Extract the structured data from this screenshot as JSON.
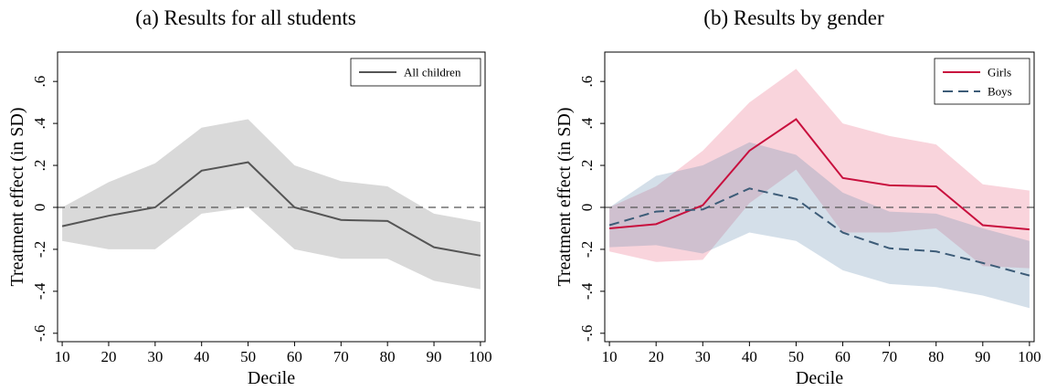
{
  "chart_data": [
    {
      "type": "line",
      "subcaption": "(a) Results for all students",
      "xlabel": "Decile",
      "ylabel": "Treatment effect (in SD)",
      "x": [
        10,
        20,
        30,
        40,
        50,
        60,
        70,
        80,
        90,
        100
      ],
      "xticks": [
        "10",
        "20",
        "30",
        "40",
        "50",
        "60",
        "70",
        "80",
        "90",
        "100"
      ],
      "yticks": [
        "-.6",
        "-.4",
        "-.2",
        "0",
        ".2",
        ".4",
        ".6"
      ],
      "ylim": [
        -0.64,
        0.74
      ],
      "xlim": [
        9,
        101
      ],
      "grid": false,
      "reference_line": 0,
      "legend_position": "top-right",
      "series": [
        {
          "name": "All children",
          "color": "#555555",
          "band_color": "#d9d9d9",
          "dash": "solid",
          "values": [
            -0.09,
            -0.04,
            0.0,
            0.175,
            0.215,
            0.0,
            -0.06,
            -0.065,
            -0.19,
            -0.23
          ],
          "ci_upper": [
            0.0,
            0.12,
            0.21,
            0.38,
            0.42,
            0.2,
            0.125,
            0.1,
            -0.03,
            -0.07
          ],
          "ci_lower": [
            -0.16,
            -0.2,
            -0.2,
            -0.03,
            0.0,
            -0.2,
            -0.245,
            -0.245,
            -0.35,
            -0.39
          ]
        }
      ]
    },
    {
      "type": "line",
      "subcaption": "(b) Results by gender",
      "xlabel": "Decile",
      "ylabel": "Treatment effect (in SD)",
      "x": [
        10,
        20,
        30,
        40,
        50,
        60,
        70,
        80,
        90,
        100
      ],
      "xticks": [
        "10",
        "20",
        "30",
        "40",
        "50",
        "60",
        "70",
        "80",
        "90",
        "100"
      ],
      "yticks": [
        "-.6",
        "-.4",
        "-.2",
        "0",
        ".2",
        ".4",
        ".6"
      ],
      "ylim": [
        -0.64,
        0.74
      ],
      "xlim": [
        9,
        101
      ],
      "grid": false,
      "reference_line": 0,
      "legend_position": "top-right",
      "series": [
        {
          "name": "Girls",
          "color": "#c8103e",
          "band_color": "rgba(230,90,120,0.26)",
          "dash": "solid",
          "values": [
            -0.1,
            -0.08,
            0.01,
            0.27,
            0.42,
            0.14,
            0.105,
            0.1,
            -0.085,
            -0.105
          ],
          "ci_upper": [
            0.0,
            0.1,
            0.27,
            0.5,
            0.66,
            0.4,
            0.34,
            0.3,
            0.11,
            0.08
          ],
          "ci_lower": [
            -0.21,
            -0.26,
            -0.25,
            0.02,
            0.18,
            -0.12,
            -0.12,
            -0.1,
            -0.28,
            -0.29
          ]
        },
        {
          "name": "Boys",
          "color": "#3d5c78",
          "band_color": "rgba(100,140,175,0.28)",
          "dash": "dashed",
          "values": [
            -0.085,
            -0.02,
            -0.01,
            0.09,
            0.04,
            -0.12,
            -0.195,
            -0.21,
            -0.265,
            -0.325
          ],
          "ci_upper": [
            0.0,
            0.15,
            0.2,
            0.31,
            0.25,
            0.07,
            -0.02,
            -0.03,
            -0.1,
            -0.16
          ],
          "ci_lower": [
            -0.19,
            -0.18,
            -0.22,
            -0.12,
            -0.16,
            -0.3,
            -0.365,
            -0.38,
            -0.42,
            -0.48
          ]
        }
      ]
    }
  ]
}
